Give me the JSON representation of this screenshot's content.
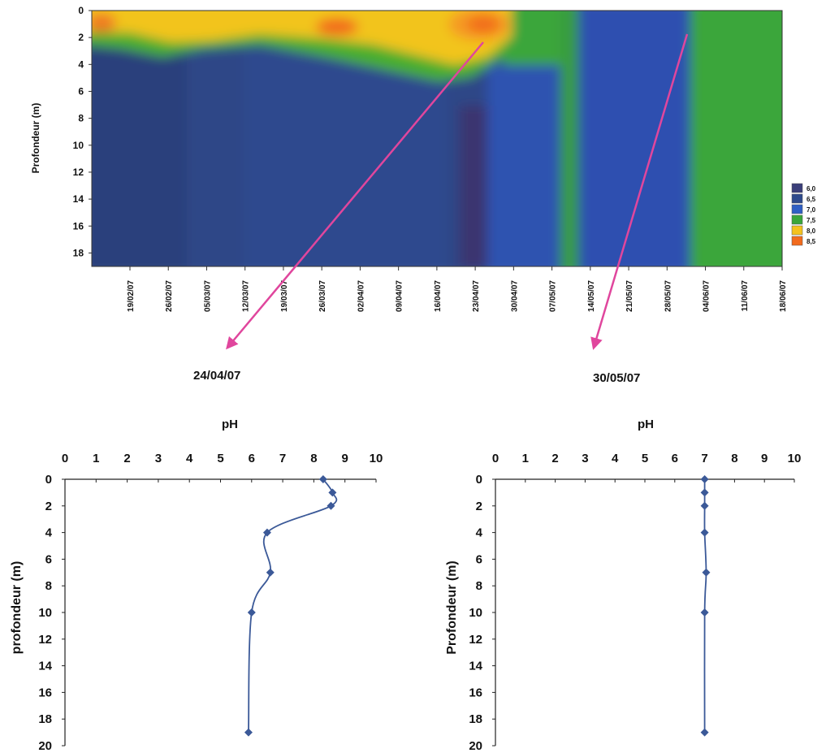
{
  "chart_data": [
    {
      "type": "heatmap",
      "title": "",
      "ylabel": "Profondeur (m)",
      "xlabel": "",
      "ylim": [
        19,
        0
      ],
      "y_ticks": [
        0,
        2,
        4,
        6,
        8,
        10,
        12,
        14,
        16,
        18
      ],
      "x_ticks": [
        "19/02/07",
        "26/02/07",
        "05/03/07",
        "12/03/07",
        "19/03/07",
        "26/03/07",
        "02/04/07",
        "09/04/07",
        "16/04/07",
        "23/04/07",
        "30/04/07",
        "07/05/07",
        "14/05/07",
        "21/05/07",
        "28/05/07",
        "04/06/07",
        "11/06/07",
        "18/06/07"
      ],
      "legend": {
        "placement": "right",
        "entries": [
          {
            "label": "6,0",
            "color": "#3b3f7a"
          },
          {
            "label": "6,5",
            "color": "#2e4a8c"
          },
          {
            "label": "7,0",
            "color": "#2f5fc4"
          },
          {
            "label": "7,5",
            "color": "#3aa63a"
          },
          {
            "label": "8,0",
            "color": "#f4c21e"
          },
          {
            "label": "8,5",
            "color": "#f26b1d"
          }
        ]
      },
      "annotations": [
        {
          "label": "24/04/07",
          "color": "#e0469d"
        },
        {
          "label": "30/05/07",
          "color": "#e0469d"
        }
      ]
    },
    {
      "type": "line",
      "title": "pH",
      "date": "24/04/07",
      "xlabel": "pH",
      "ylabel": "profondeur (m)",
      "xlim": [
        0,
        10
      ],
      "ylim": [
        20,
        0
      ],
      "x_ticks": [
        0,
        1,
        2,
        3,
        4,
        5,
        6,
        7,
        8,
        9,
        10
      ],
      "y_ticks": [
        0,
        2,
        4,
        6,
        8,
        10,
        12,
        14,
        16,
        18,
        20
      ],
      "series": [
        {
          "color": "#3b5998",
          "points": [
            [
              8.3,
              0
            ],
            [
              8.6,
              1
            ],
            [
              8.55,
              2
            ],
            [
              6.5,
              4
            ],
            [
              6.6,
              7
            ],
            [
              6.0,
              10
            ],
            [
              5.9,
              19
            ]
          ]
        }
      ]
    },
    {
      "type": "line",
      "title": "pH",
      "date": "30/05/07",
      "xlabel": "pH",
      "ylabel": "Profondeur (m)",
      "xlim": [
        0,
        10
      ],
      "ylim": [
        20,
        0
      ],
      "x_ticks": [
        0,
        1,
        2,
        3,
        4,
        5,
        6,
        7,
        8,
        9,
        10
      ],
      "y_ticks": [
        0,
        2,
        4,
        6,
        8,
        10,
        12,
        14,
        16,
        18,
        20
      ],
      "series": [
        {
          "color": "#3b5998",
          "points": [
            [
              7.0,
              0
            ],
            [
              7.0,
              1
            ],
            [
              7.0,
              2
            ],
            [
              7.0,
              4
            ],
            [
              7.05,
              7
            ],
            [
              7.0,
              10
            ],
            [
              7.0,
              19
            ]
          ]
        }
      ]
    }
  ]
}
